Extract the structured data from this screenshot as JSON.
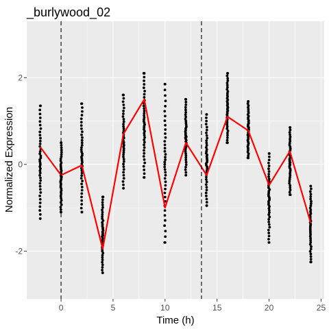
{
  "chart_data": {
    "type": "scatter",
    "title": "_burlywood_02",
    "xlabel": "Time (h)",
    "ylabel": "Normalized Expression",
    "xlim": [
      -3.3,
      25.3
    ],
    "ylim": [
      -3.1,
      3.3
    ],
    "x_ticks": [
      0,
      5,
      10,
      15,
      20,
      25
    ],
    "y_ticks": [
      -2,
      0,
      2
    ],
    "grid": true,
    "vlines": [
      0,
      13.5
    ],
    "colors": {
      "panel": "#ebebeb",
      "grid": "#ffffff",
      "points": "#000000",
      "mean_line": "#ff0000",
      "vlines": "#000000"
    },
    "point_columns": [
      {
        "x": -2,
        "min": -1.25,
        "max": 1.35
      },
      {
        "x": 0,
        "min": -1.1,
        "max": 0.5
      },
      {
        "x": 2,
        "min": -1.1,
        "max": 1.4
      },
      {
        "x": 4,
        "min": -2.5,
        "max": -0.75
      },
      {
        "x": 6,
        "min": -0.55,
        "max": 1.6
      },
      {
        "x": 8,
        "min": -0.3,
        "max": 2.1
      },
      {
        "x": 10,
        "min": -1.8,
        "max": 1.85
      },
      {
        "x": 12,
        "min": -0.25,
        "max": 1.5
      },
      {
        "x": 14,
        "min": -0.95,
        "max": 1.15
      },
      {
        "x": 16,
        "min": 0.5,
        "max": 2.1
      },
      {
        "x": 18,
        "min": 0.15,
        "max": 1.45
      },
      {
        "x": 20,
        "min": -1.8,
        "max": 0.25
      },
      {
        "x": 22,
        "min": -0.7,
        "max": 0.85
      },
      {
        "x": 24,
        "min": -2.25,
        "max": -0.5
      }
    ],
    "series": [
      {
        "x": [
          -2,
          0,
          2,
          4,
          6,
          8,
          10,
          12,
          14,
          16,
          18,
          20,
          22,
          24
        ],
        "y": [
          0.4,
          -0.25,
          -0.02,
          -1.95,
          0.7,
          1.5,
          -1.0,
          0.5,
          -0.25,
          1.1,
          0.78,
          -0.48,
          0.3,
          -1.35
        ]
      }
    ]
  }
}
